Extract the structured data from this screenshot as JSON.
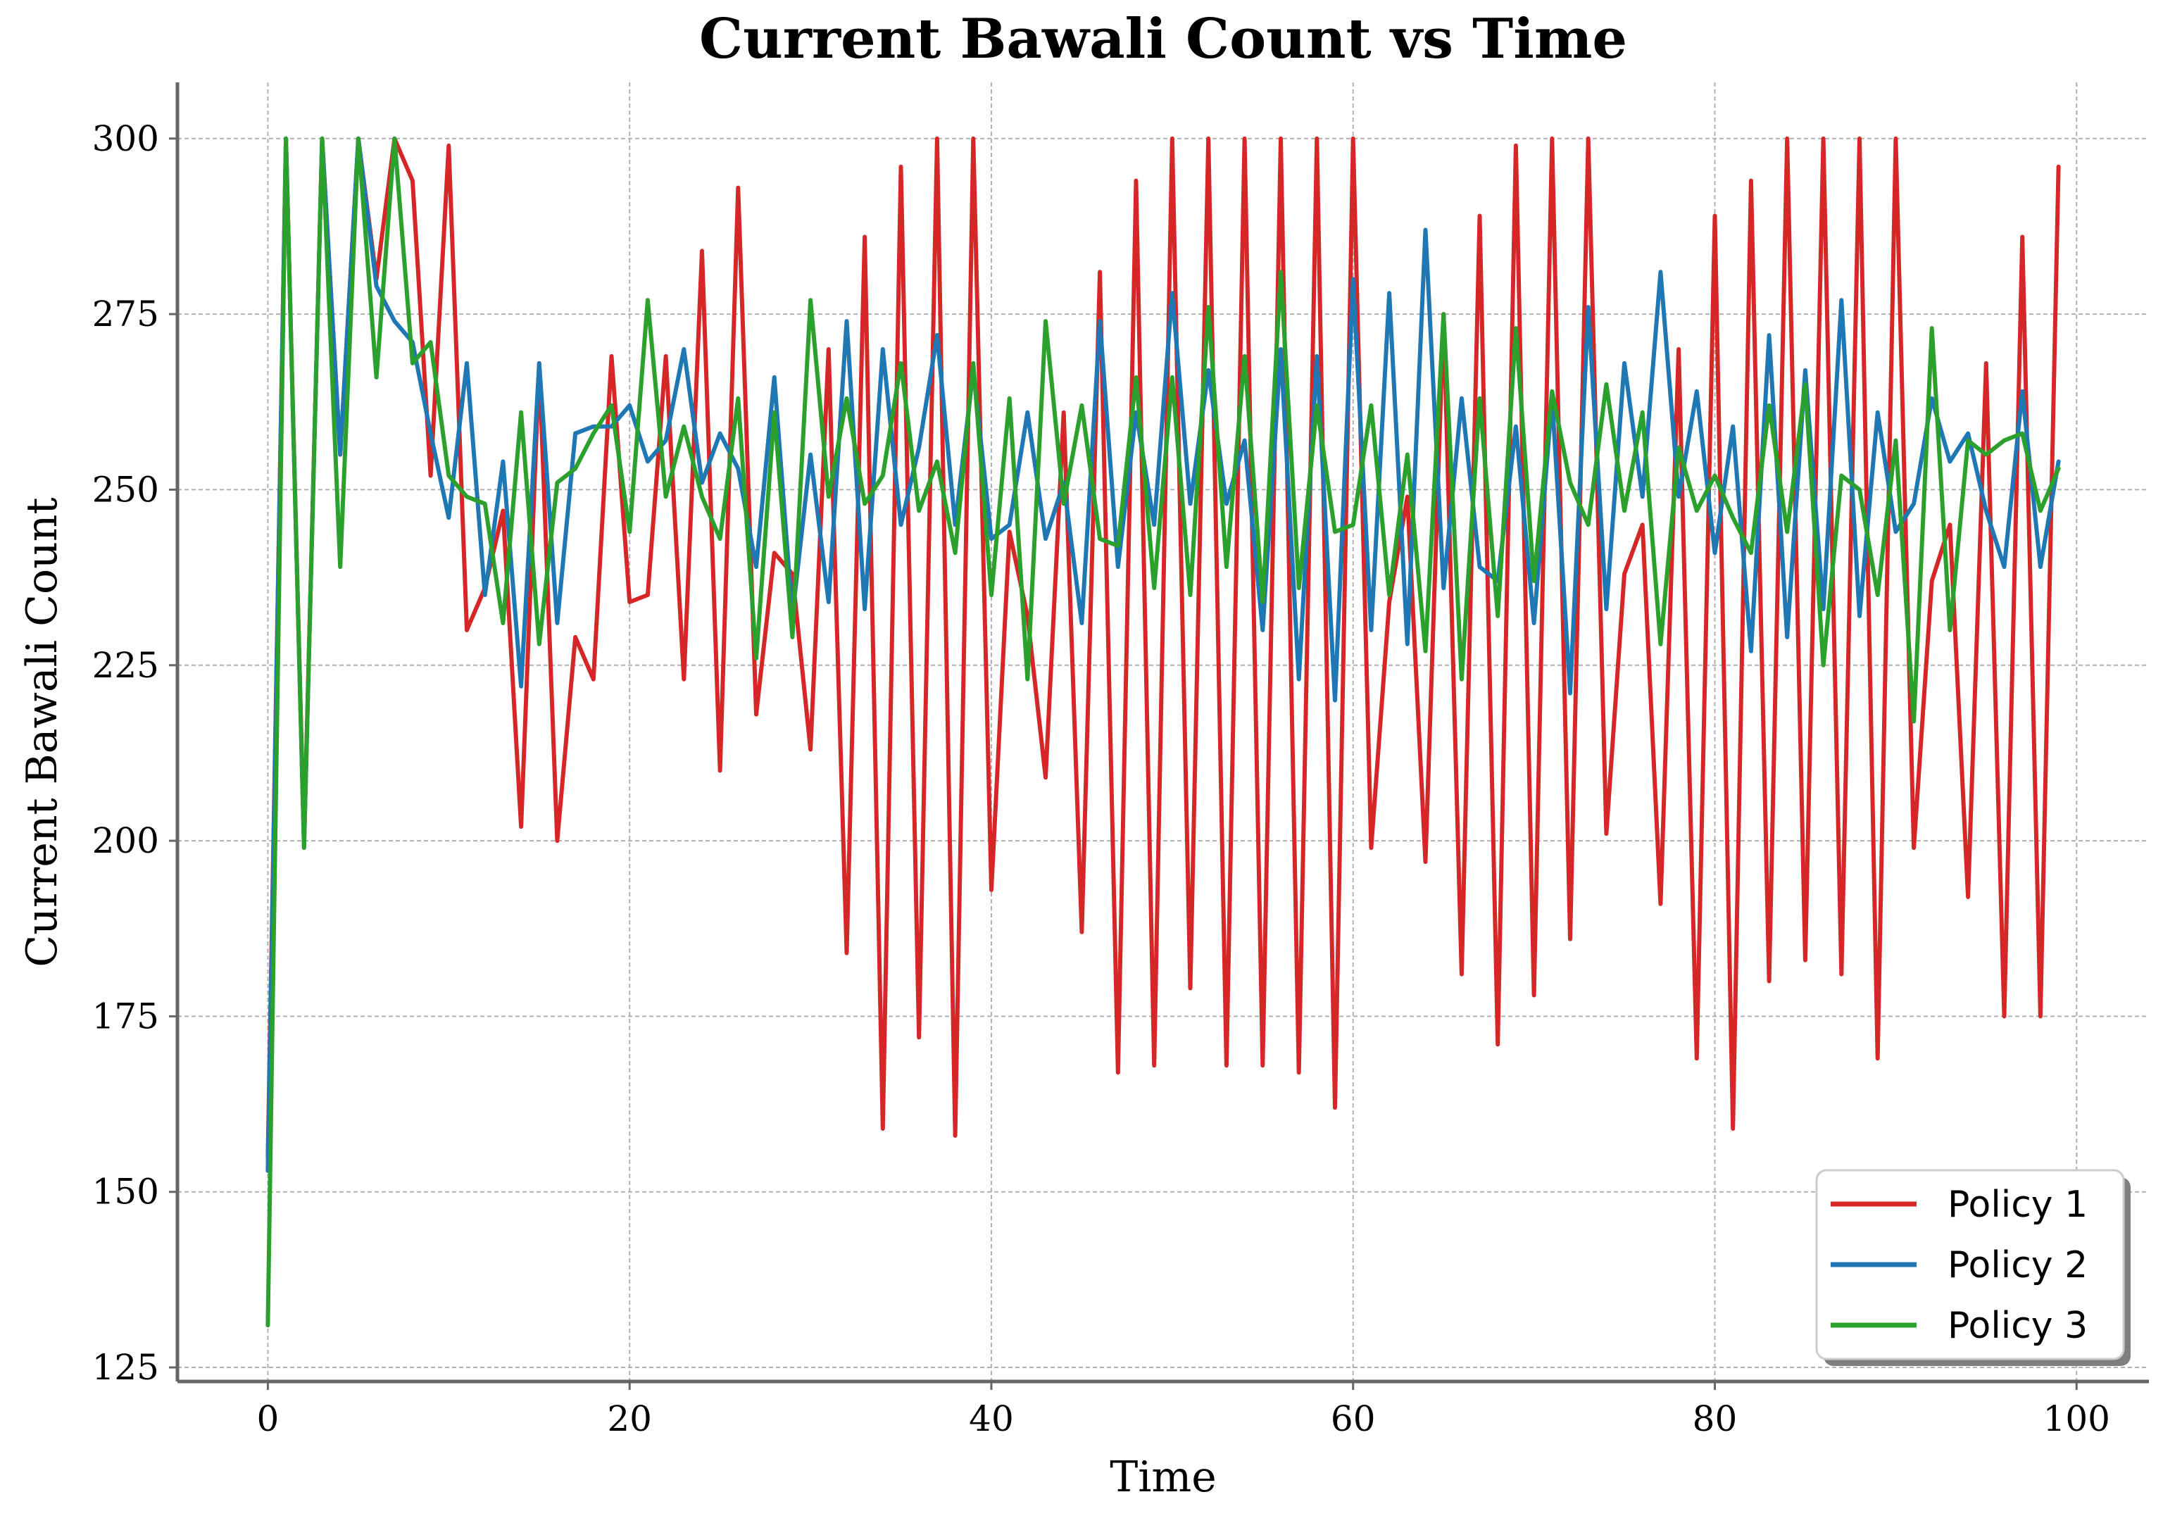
{
  "chart_data": {
    "type": "line",
    "title": "Current Bawali Count vs Time",
    "xlabel": "Time",
    "ylabel": "Current Bawali Count",
    "xlim": [
      -5,
      104
    ],
    "ylim": [
      123,
      308
    ],
    "xticks": [
      0,
      20,
      40,
      60,
      80,
      100
    ],
    "yticks": [
      125,
      150,
      175,
      200,
      225,
      250,
      275,
      300
    ],
    "grid": true,
    "legend_position": "lower-right",
    "x": [
      0,
      1,
      2,
      3,
      4,
      5,
      6,
      7,
      8,
      9,
      10,
      11,
      12,
      13,
      14,
      15,
      16,
      17,
      18,
      19,
      20,
      21,
      22,
      23,
      24,
      25,
      26,
      27,
      28,
      29,
      30,
      31,
      32,
      33,
      34,
      35,
      36,
      37,
      38,
      39,
      40,
      41,
      42,
      43,
      44,
      45,
      46,
      47,
      48,
      49,
      50,
      51,
      52,
      53,
      54,
      55,
      56,
      57,
      58,
      59,
      60,
      61,
      62,
      63,
      64,
      65,
      66,
      67,
      68,
      69,
      70,
      71,
      72,
      73,
      74,
      75,
      76,
      77,
      78,
      79,
      80,
      81,
      82,
      83,
      84,
      85,
      86,
      87,
      88,
      89,
      90,
      91,
      92,
      93,
      94,
      95,
      96,
      97,
      98,
      99
    ],
    "series": [
      {
        "name": "Policy 1",
        "color": "#d62728",
        "values": [
          155,
          300,
          200,
          300,
          255,
          300,
          280,
          300,
          294,
          252,
          299,
          230,
          236,
          247,
          202,
          268,
          200,
          229,
          223,
          269,
          234,
          235,
          269,
          223,
          284,
          210,
          293,
          218,
          241,
          238,
          213,
          270,
          184,
          286,
          159,
          296,
          172,
          300,
          158,
          300,
          193,
          244,
          232,
          209,
          261,
          187,
          281,
          167,
          294,
          168,
          300,
          179,
          300,
          168,
          300,
          168,
          300,
          167,
          300,
          162,
          300,
          199,
          234,
          249,
          197,
          275,
          181,
          289,
          171,
          299,
          178,
          300,
          186,
          300,
          201,
          238,
          245,
          191,
          270,
          169,
          289,
          159,
          294,
          180,
          300,
          183,
          300,
          181,
          300,
          169,
          300,
          199,
          237,
          245,
          192,
          268,
          175,
          286,
          175,
          296
        ]
      },
      {
        "name": "Policy 2",
        "color": "#1f77b4",
        "values": [
          153,
          300,
          199,
          300,
          255,
          300,
          279,
          274,
          271,
          258,
          246,
          268,
          235,
          254,
          222,
          268,
          231,
          258,
          259,
          259,
          262,
          254,
          257,
          270,
          251,
          258,
          253,
          239,
          266,
          232,
          255,
          234,
          274,
          233,
          270,
          245,
          256,
          272,
          245,
          267,
          243,
          245,
          261,
          243,
          251,
          231,
          274,
          239,
          261,
          245,
          278,
          248,
          267,
          248,
          257,
          230,
          270,
          223,
          269,
          220,
          280,
          230,
          278,
          228,
          287,
          236,
          263,
          239,
          237,
          259,
          231,
          263,
          221,
          276,
          233,
          268,
          249,
          281,
          249,
          264,
          241,
          259,
          227,
          272,
          229,
          267,
          233,
          277,
          232,
          261,
          244,
          248,
          263,
          254,
          258,
          247,
          239,
          264,
          239,
          254
        ]
      },
      {
        "name": "Policy 3",
        "color": "#2ca02c",
        "values": [
          131,
          300,
          199,
          300,
          239,
          300,
          266,
          300,
          268,
          271,
          252,
          249,
          248,
          231,
          261,
          228,
          251,
          253,
          258,
          262,
          244,
          277,
          249,
          259,
          249,
          243,
          263,
          226,
          261,
          229,
          277,
          249,
          263,
          248,
          252,
          268,
          247,
          254,
          241,
          268,
          235,
          263,
          223,
          274,
          248,
          262,
          243,
          242,
          266,
          236,
          266,
          235,
          276,
          239,
          269,
          234,
          281,
          236,
          262,
          244,
          245,
          262,
          235,
          255,
          227,
          275,
          223,
          263,
          232,
          273,
          237,
          264,
          251,
          245,
          265,
          247,
          261,
          228,
          256,
          247,
          252,
          246,
          241,
          262,
          244,
          265,
          225,
          252,
          250,
          235,
          257,
          217,
          273,
          230,
          257,
          255,
          257,
          258,
          247,
          253
        ]
      }
    ]
  }
}
